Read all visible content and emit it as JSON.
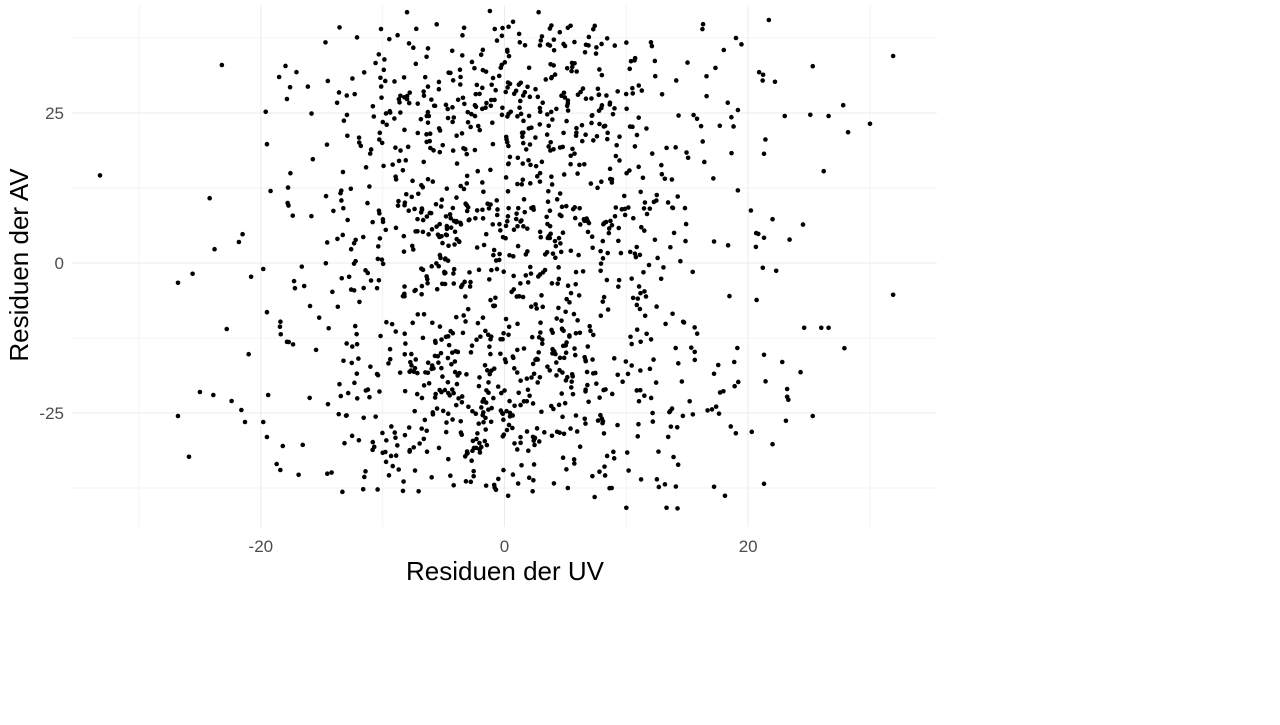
{
  "chart_data": {
    "type": "scatter",
    "title": "",
    "xlabel": "Residuen der UV",
    "ylabel": "Residuen der AV",
    "xlim": [
      -35.5,
      35.5
    ],
    "ylim": [
      -44,
      43
    ],
    "x_ticks": [
      -20,
      0,
      20
    ],
    "x_tick_labels": [
      "-20",
      "0",
      "20"
    ],
    "y_ticks": [
      -25,
      0,
      25
    ],
    "y_tick_labels": [
      "-25",
      "0",
      "25"
    ],
    "x_minor_ticks": [
      -30,
      -10,
      10,
      30
    ],
    "y_minor_ticks": [
      -37.5,
      -12.5,
      12.5,
      37.5
    ],
    "grid": true,
    "point_color": "#000000",
    "background": "#ffffff",
    "points_outliers": [
      [
        -33.2,
        14.6
      ],
      [
        -23.2,
        33.0
      ],
      [
        -24.2,
        10.8
      ],
      [
        -26.8,
        -3.3
      ],
      [
        -25.6,
        -1.8
      ],
      [
        -26.8,
        -25.5
      ],
      [
        -25.9,
        -32.3
      ],
      [
        -25.0,
        -21.5
      ],
      [
        -23.8,
        2.3
      ],
      [
        -23.9,
        -22.0
      ],
      [
        -22.8,
        -11.0
      ],
      [
        -22.4,
        -23.0
      ],
      [
        -21.6,
        -24.5
      ],
      [
        -21.3,
        -26.5
      ],
      [
        -21.0,
        -15.2
      ],
      [
        -21.8,
        3.5
      ],
      [
        -21.5,
        4.8
      ],
      [
        -20.8,
        -2.3
      ],
      [
        -19.8,
        -1.0
      ],
      [
        -19.2,
        12.0
      ],
      [
        -19.6,
        25.2
      ],
      [
        -19.5,
        19.8
      ],
      [
        -19.8,
        -26.5
      ],
      [
        -19.5,
        -29.0
      ],
      [
        -19.4,
        -22.0
      ],
      [
        -19.5,
        -8.2
      ],
      [
        -18.5,
        31.0
      ],
      [
        -18.7,
        -33.5
      ],
      [
        -18.4,
        -34.5
      ],
      [
        -18.2,
        -30.5
      ],
      [
        -17.6,
        29.3
      ],
      [
        -17.8,
        10.0
      ],
      [
        -17.2,
        -4.2
      ],
      [
        -16.9,
        -35.3
      ],
      [
        -8.0,
        41.8
      ],
      [
        -1.2,
        42.0
      ],
      [
        0.7,
        40.2
      ],
      [
        2.8,
        41.8
      ],
      [
        -0.8,
        39.0
      ],
      [
        5.2,
        39.2
      ],
      [
        16.3,
        39.8
      ],
      [
        21.7,
        40.5
      ],
      [
        19.0,
        37.5
      ],
      [
        18.0,
        35.5
      ],
      [
        20.9,
        31.8
      ],
      [
        22.2,
        30.2
      ],
      [
        25.3,
        32.8
      ],
      [
        31.9,
        34.5
      ],
      [
        27.8,
        26.3
      ],
      [
        25.1,
        24.7
      ],
      [
        23.0,
        24.5
      ],
      [
        26.6,
        24.5
      ],
      [
        30.0,
        23.2
      ],
      [
        28.2,
        21.8
      ],
      [
        21.3,
        18.2
      ],
      [
        26.2,
        15.3
      ],
      [
        22.0,
        7.3
      ],
      [
        24.5,
        6.4
      ],
      [
        23.4,
        3.9
      ],
      [
        21.3,
        4.2
      ],
      [
        22.3,
        -1.3
      ],
      [
        21.2,
        -0.8
      ],
      [
        31.9,
        -5.3
      ],
      [
        24.6,
        -10.8
      ],
      [
        26.0,
        -10.8
      ],
      [
        26.6,
        -10.8
      ],
      [
        27.9,
        -14.2
      ],
      [
        21.3,
        -15.3
      ],
      [
        22.8,
        -16.5
      ],
      [
        24.3,
        -18.2
      ],
      [
        23.2,
        -21.0
      ],
      [
        23.2,
        -22.3
      ],
      [
        23.3,
        -22.8
      ],
      [
        25.3,
        -25.5
      ],
      [
        23.1,
        -26.3
      ],
      [
        22.0,
        -30.2
      ],
      [
        21.3,
        -36.8
      ],
      [
        18.1,
        -38.8
      ],
      [
        17.2,
        -37.3
      ],
      [
        13.3,
        -40.8
      ],
      [
        14.2,
        -40.9
      ],
      [
        10.0,
        -40.8
      ],
      [
        8.8,
        -37.5
      ],
      [
        7.4,
        -39.0
      ],
      [
        5.2,
        -37.5
      ],
      [
        0.3,
        -38.8
      ],
      [
        -0.7,
        -37.8
      ],
      [
        -11.6,
        -37.7
      ]
    ],
    "dense_cloud": {
      "x_range": [
        -18.5,
        21.5
      ],
      "y_range": [
        -38.5,
        39.8
      ],
      "n_points": 1280,
      "seed": 20240611
    }
  }
}
